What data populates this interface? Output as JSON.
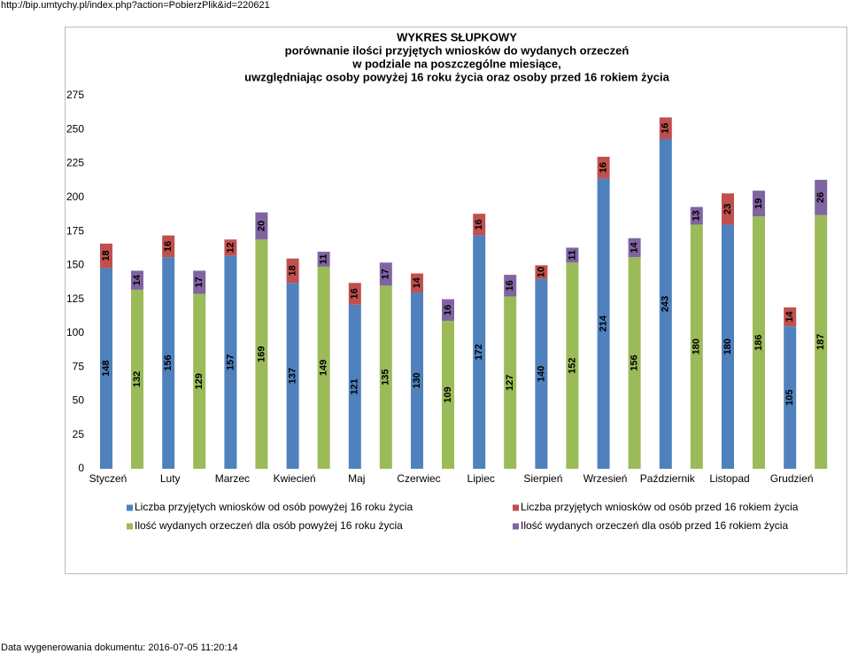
{
  "header_url": "http://bip.umtychy.pl/index.php?action=PobierzPlik&id=220621",
  "footer": "Data wygenerowania dokumentu: 2016-07-05 11:20:14",
  "chart_data": {
    "type": "bar",
    "stacked": true,
    "grid": false,
    "title": "WYKRES SŁUPKOWY",
    "subtitle": [
      "porównanie ilości przyjętych wniosków do wydanych orzeczeń",
      "w podziale na poszczególne miesiące,",
      "uwzględniając osoby powyżej 16 roku życia oraz osoby przed 16 rokiem życia"
    ],
    "categories": [
      "Styczeń",
      "Luty",
      "Marzec",
      "Kwiecień",
      "Maj",
      "Czerwiec",
      "Lipiec",
      "Sierpień",
      "Wrzesień",
      "Październik",
      "Listopad",
      "Grudzień"
    ],
    "ylim": [
      0,
      275
    ],
    "yticks": [
      0,
      25,
      50,
      75,
      100,
      125,
      150,
      175,
      200,
      225,
      250,
      275
    ],
    "legend": "bottom",
    "series": [
      {
        "name": "Liczba przyjętych wniosków od osób powyżej 16 roku życia",
        "color": "#4f81bd",
        "stack": 0,
        "values": [
          148,
          156,
          157,
          137,
          121,
          130,
          172,
          140,
          214,
          243,
          180,
          105
        ]
      },
      {
        "name": "Liczba przyjętych wniosków od osób przed 16 rokiem życia",
        "color": "#c0504d",
        "stack": 0,
        "values": [
          18,
          16,
          12,
          18,
          16,
          14,
          16,
          10,
          16,
          16,
          23,
          14
        ]
      },
      {
        "name": "Ilość wydanych orzeczeń dla osób powyżej 16 roku życia",
        "color": "#9bbb59",
        "stack": 1,
        "values": [
          132,
          129,
          169,
          149,
          135,
          109,
          127,
          152,
          156,
          180,
          186,
          187
        ]
      },
      {
        "name": "Ilość wydanych orzeczeń dla osób przed 16 rokiem życia",
        "color": "#8064a2",
        "stack": 1,
        "values": [
          14,
          17,
          20,
          11,
          17,
          16,
          16,
          11,
          14,
          13,
          19,
          26
        ]
      }
    ]
  }
}
